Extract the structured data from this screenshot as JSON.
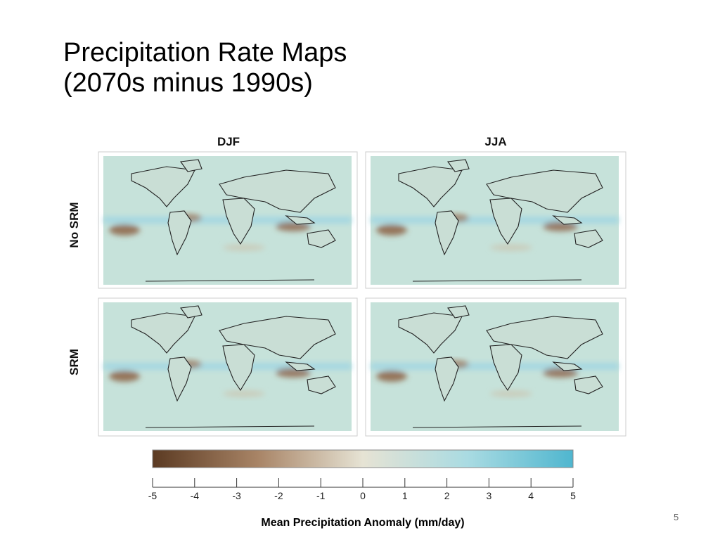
{
  "header": {
    "title_line1": "Precipitation Rate Maps",
    "title_line2": "(2070s minus 1990s)"
  },
  "columns": [
    "DJF",
    "JJA"
  ],
  "rows": [
    "No SRM",
    "SRM"
  ],
  "colorbar": {
    "range": [
      -5,
      5
    ],
    "ticks": [
      -5,
      -4,
      -3,
      -2,
      -1,
      0,
      1,
      2,
      3,
      4,
      5
    ],
    "label": "Mean Precipitation Anomaly (mm/day)"
  },
  "slide_number": "5"
}
